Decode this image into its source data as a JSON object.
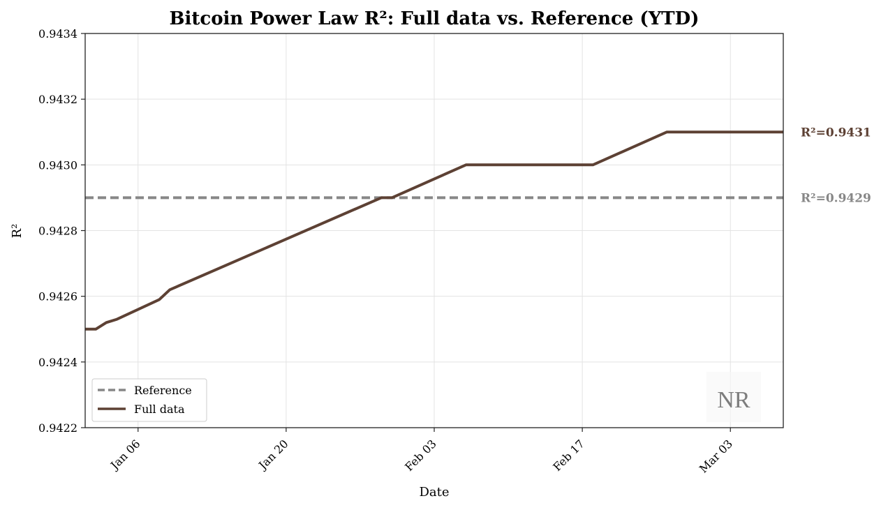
{
  "chart_data": {
    "type": "line",
    "title": "Bitcoin Power Law R²: Full data vs. Reference (YTD)",
    "xlabel": "Date",
    "ylabel": "R²",
    "xlim": [
      "2025-01-01",
      "2025-03-08"
    ],
    "ylim": [
      0.9422,
      0.9434
    ],
    "grid": true,
    "legend_position": "lower-left",
    "y_ticks": [
      0.9422,
      0.9424,
      0.9426,
      0.9428,
      0.943,
      0.9432,
      0.9434
    ],
    "y_tick_labels": [
      "0.9422",
      "0.9424",
      "0.9426",
      "0.9428",
      "0.9430",
      "0.9432",
      "0.9434"
    ],
    "x_ticks": [
      "2025-01-06",
      "2025-01-20",
      "2025-02-03",
      "2025-02-17",
      "2025-03-03"
    ],
    "x_tick_labels": [
      "Jan 06",
      "Jan 20",
      "Feb 03",
      "Feb 17",
      "Mar 03"
    ],
    "series": [
      {
        "name": "Reference",
        "style": "dashed",
        "color": "#878787",
        "x": [
          "2025-01-01",
          "2025-03-08"
        ],
        "y": [
          0.9429,
          0.9429
        ],
        "end_label": "R²=0.9429"
      },
      {
        "name": "Full data",
        "style": "solid",
        "color": "#5d4134",
        "x": [
          "2025-01-01",
          "2025-01-02",
          "2025-01-03",
          "2025-01-04",
          "2025-01-08",
          "2025-01-09",
          "2025-01-29",
          "2025-01-30",
          "2025-02-06",
          "2025-02-15",
          "2025-02-18",
          "2025-02-25",
          "2025-03-08"
        ],
        "y": [
          0.9425,
          0.9425,
          0.94252,
          0.94253,
          0.94259,
          0.94262,
          0.9429,
          0.9429,
          0.943,
          0.943,
          0.943,
          0.9431,
          0.9431
        ],
        "end_label": "R²=0.9431"
      }
    ],
    "watermark": "NR"
  }
}
